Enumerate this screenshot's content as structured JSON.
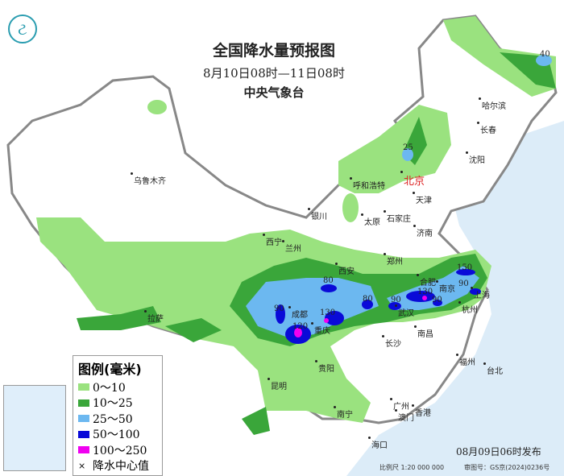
{
  "header": {
    "title": "全国降水量预报图",
    "period": "8月10日08时—11日08时",
    "issuer": "中央气象台",
    "logo": "weather-service-logo"
  },
  "colors": {
    "0-10": "#9ae27f",
    "10-25": "#3aa63a",
    "25-50": "#6cb8f0",
    "50-100": "#0a0ad8",
    "100-250": "#f000f0",
    "sea": "#dcecf8"
  },
  "legend": {
    "title": "图例(毫米)",
    "items": [
      "0～10",
      "10～25",
      "25～50",
      "50～100",
      "100～250"
    ],
    "center_label": "降水中心值"
  },
  "cities": {
    "urumqi": "乌鲁木齐",
    "harbin": "哈尔滨",
    "changchun": "长春",
    "shenyang": "沈阳",
    "beijing": "北京",
    "hohhot": "呼和浩特",
    "tianjin": "天津",
    "yinchuan": "银川",
    "taiyuan": "太原",
    "shijiazhuang": "石家庄",
    "jinan": "济南",
    "xining": "西宁",
    "lanzhou": "兰州",
    "zhengzhou": "郑州",
    "xian": "西安",
    "lhasa": "拉萨",
    "chengdu": "成都",
    "chongqing": "重庆",
    "wuhan": "武汉",
    "hefei": "合肥",
    "nanjing": "南京",
    "shanghai": "上海",
    "hangzhou": "杭州",
    "nanchang": "南昌",
    "changsha": "长沙",
    "guiyang": "贵阳",
    "kunming": "昆明",
    "fuzhou": "福州",
    "taipei": "台北",
    "nanning": "南宁",
    "guangzhou": "广州",
    "macau": "澳门",
    "hongkong": "香港",
    "haikou": "海口"
  },
  "center_values": [
    "40",
    "25",
    "90",
    "80",
    "130",
    "120",
    "80",
    "90",
    "130",
    "90",
    "150",
    "90"
  ],
  "footer": {
    "issued": "08月09日06时发布",
    "scale": "比例尺 1:20 000 000",
    "approval": "审图号：GS京(2024)0236号"
  }
}
